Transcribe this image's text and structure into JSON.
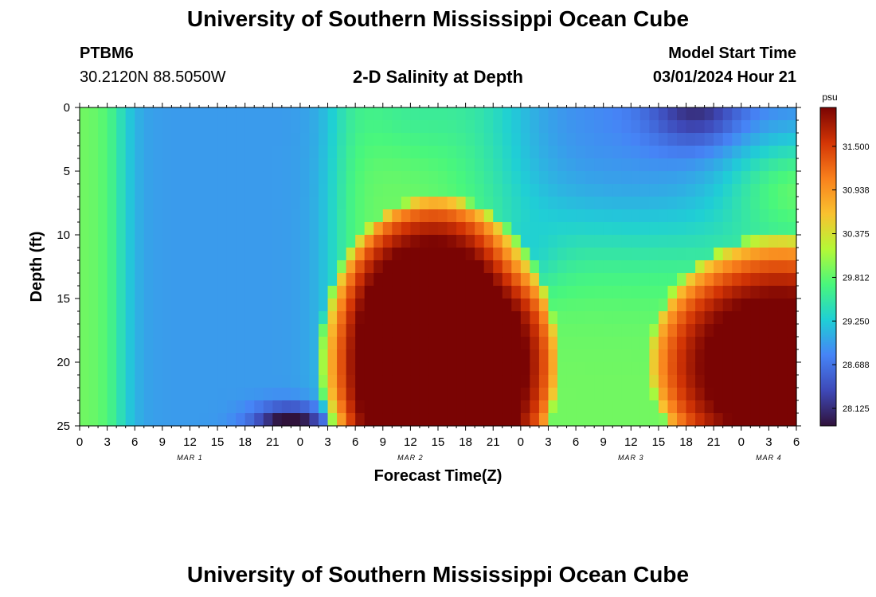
{
  "header": {
    "title": "University of Southern Mississippi Ocean Cube",
    "station": "PTBM6",
    "coordinates": "30.2120N  88.5050W",
    "subtitle": "2-D Salinity at Depth",
    "start_label": "Model Start Time",
    "start_value": "03/01/2024 Hour 21"
  },
  "footer": {
    "title": "University of Southern Mississippi Ocean Cube"
  },
  "chart_data": {
    "type": "heatmap",
    "title": "2-D Salinity at Depth",
    "xlabel": "Forecast Time(Z)",
    "ylabel": "Depth (ft)",
    "x_hours": [
      0,
      78
    ],
    "x_tick_labels": [
      "0",
      "3",
      "6",
      "9",
      "12",
      "15",
      "18",
      "21",
      "0",
      "3",
      "6",
      "9",
      "12",
      "15",
      "18",
      "21",
      "0",
      "3",
      "6",
      "9",
      "12",
      "15",
      "18",
      "21",
      "0",
      "3",
      "6"
    ],
    "date_labels": [
      {
        "label": "MAR 1",
        "hour": 12
      },
      {
        "label": "MAR 2",
        "hour": 36
      },
      {
        "label": "MAR 3",
        "hour": 60
      },
      {
        "label": "MAR 4",
        "hour": 75
      }
    ],
    "y_ticks": [
      0,
      5,
      10,
      15,
      20,
      25
    ],
    "ylim": [
      0,
      25
    ],
    "y_inverted": true,
    "colorbar": {
      "unit": "psu",
      "ticks": [
        "31.500",
        "30.938",
        "30.375",
        "29.812",
        "29.250",
        "28.688",
        "28.125"
      ],
      "range": [
        27.9,
        32.0
      ],
      "colors": [
        "#30123b",
        "#3e49b8",
        "#4684f6",
        "#1fcfd5",
        "#49f77c",
        "#b5f836",
        "#f9c12f",
        "#f9801c",
        "#d33505",
        "#7a0403"
      ]
    },
    "features": [
      {
        "name": "fresh blue column",
        "hours": [
          5,
          27
        ],
        "depth_ft": [
          0,
          23
        ],
        "salinity_psu": 29.0
      },
      {
        "name": "coastal band",
        "hours": [
          0,
          5
        ],
        "depth_ft": [
          0,
          25
        ],
        "salinity_psu": 29.8
      },
      {
        "name": "saline core 1",
        "hours": [
          28,
          54
        ],
        "depth_ft": [
          8,
          25
        ],
        "salinity_psu": 31.8
      },
      {
        "name": "surface freshening",
        "hours": [
          44,
          78
        ],
        "depth_ft": [
          0,
          10
        ],
        "salinity_psu": 28.7
      },
      {
        "name": "freshest surface",
        "hours": [
          62,
          72
        ],
        "depth_ft": [
          0,
          3
        ],
        "salinity_psu": 28.1
      },
      {
        "name": "saline core 2",
        "hours": [
          62,
          78
        ],
        "depth_ft": [
          12,
          25
        ],
        "salinity_psu": 31.7
      },
      {
        "name": "bottom fresh pocket",
        "hours": [
          20,
          28
        ],
        "depth_ft": [
          23,
          25
        ],
        "salinity_psu": 28.1
      }
    ]
  }
}
